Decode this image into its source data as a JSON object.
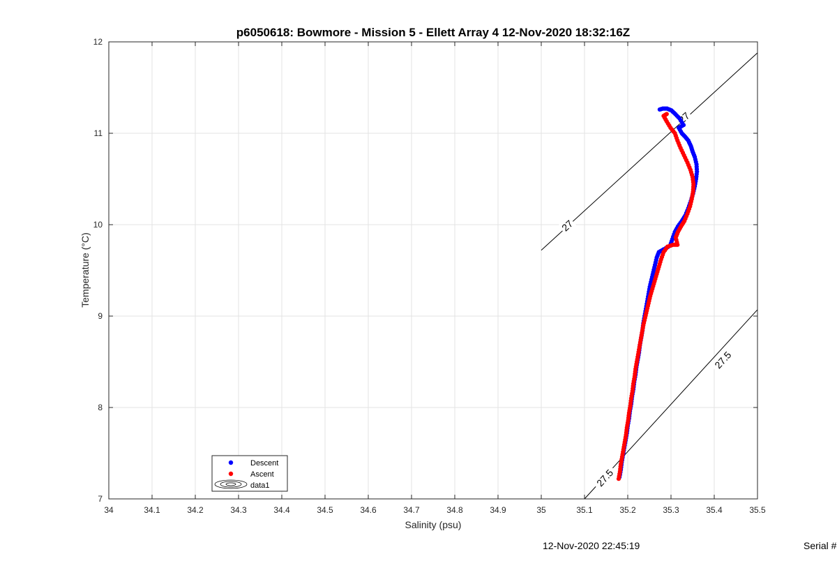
{
  "chart_data": {
    "type": "scatter",
    "title": "p6050618: Bowmore - Mission 5 - Ellett Array 4 12-Nov-2020 18:32:16Z",
    "xlabel": "Salinity (psu)",
    "ylabel": "Temperature (°C)",
    "xlim": [
      34,
      35.5
    ],
    "ylim": [
      7,
      12
    ],
    "xticks": [
      "34",
      "34.1",
      "34.2",
      "34.3",
      "34.4",
      "34.5",
      "34.6",
      "34.7",
      "34.8",
      "34.9",
      "35",
      "35.1",
      "35.2",
      "35.3",
      "35.4",
      "35.5"
    ],
    "yticks": [
      "7",
      "8",
      "9",
      "10",
      "11",
      "12"
    ],
    "grid": true,
    "legend": {
      "placement": "bottom-left",
      "entries": [
        "Descent",
        "Ascent",
        "data1"
      ]
    },
    "colors": {
      "descent": "#0000ff",
      "ascent": "#ff0000",
      "contour": "#000000",
      "grid": "#e3e3e3"
    },
    "contours": [
      {
        "label": "27",
        "points": [
          [
            35.0,
            9.72
          ],
          [
            35.5,
            11.88
          ]
        ],
        "label_positions": [
          [
            35.06,
            9.99
          ],
          [
            35.33,
            11.17
          ]
        ]
      },
      {
        "label": "27.5",
        "points": [
          [
            35.1,
            7.0
          ],
          [
            35.5,
            9.07
          ]
        ],
        "label_positions": [
          [
            35.147,
            7.23
          ],
          [
            35.42,
            8.52
          ]
        ]
      }
    ],
    "series": [
      {
        "name": "Descent",
        "marker": "dot",
        "points": [
          [
            35.181,
            7.24
          ],
          [
            35.184,
            7.32
          ],
          [
            35.186,
            7.4
          ],
          [
            35.189,
            7.48
          ],
          [
            35.192,
            7.56
          ],
          [
            35.195,
            7.64
          ],
          [
            35.198,
            7.72
          ],
          [
            35.2,
            7.8
          ],
          [
            35.203,
            7.88
          ],
          [
            35.205,
            7.96
          ],
          [
            35.208,
            8.04
          ],
          [
            35.21,
            8.12
          ],
          [
            35.213,
            8.2
          ],
          [
            35.215,
            8.28
          ],
          [
            35.218,
            8.36
          ],
          [
            35.22,
            8.44
          ],
          [
            35.223,
            8.52
          ],
          [
            35.226,
            8.6
          ],
          [
            35.228,
            8.68
          ],
          [
            35.231,
            8.76
          ],
          [
            35.234,
            8.84
          ],
          [
            35.236,
            8.92
          ],
          [
            35.239,
            9.0
          ],
          [
            35.242,
            9.08
          ],
          [
            35.245,
            9.16
          ],
          [
            35.248,
            9.24
          ],
          [
            35.251,
            9.32
          ],
          [
            35.255,
            9.4
          ],
          [
            35.259,
            9.48
          ],
          [
            35.263,
            9.56
          ],
          [
            35.267,
            9.64
          ],
          [
            35.272,
            9.7
          ],
          [
            35.283,
            9.73
          ],
          [
            35.298,
            9.77
          ],
          [
            35.303,
            9.84
          ],
          [
            35.309,
            9.92
          ],
          [
            35.316,
            9.98
          ],
          [
            35.325,
            10.04
          ],
          [
            35.333,
            10.1
          ],
          [
            35.34,
            10.18
          ],
          [
            35.346,
            10.26
          ],
          [
            35.351,
            10.34
          ],
          [
            35.355,
            10.42
          ],
          [
            35.358,
            10.5
          ],
          [
            35.36,
            10.58
          ],
          [
            35.359,
            10.66
          ],
          [
            35.355,
            10.74
          ],
          [
            35.35,
            10.8
          ],
          [
            35.346,
            10.86
          ],
          [
            35.34,
            10.92
          ],
          [
            35.333,
            10.96
          ],
          [
            35.325,
            11.0
          ],
          [
            35.318,
            11.06
          ],
          [
            35.329,
            11.09
          ],
          [
            35.32,
            11.16
          ],
          [
            35.31,
            11.21
          ],
          [
            35.301,
            11.25
          ],
          [
            35.291,
            11.27
          ],
          [
            35.281,
            11.27
          ],
          [
            35.274,
            11.26
          ]
        ]
      },
      {
        "name": "Ascent",
        "marker": "dot",
        "points": [
          [
            35.179,
            7.22
          ],
          [
            35.182,
            7.3
          ],
          [
            35.184,
            7.38
          ],
          [
            35.187,
            7.46
          ],
          [
            35.19,
            7.54
          ],
          [
            35.193,
            7.62
          ],
          [
            35.196,
            7.7
          ],
          [
            35.198,
            7.78
          ],
          [
            35.201,
            7.86
          ],
          [
            35.203,
            7.94
          ],
          [
            35.206,
            8.02
          ],
          [
            35.208,
            8.1
          ],
          [
            35.211,
            8.18
          ],
          [
            35.213,
            8.26
          ],
          [
            35.216,
            8.34
          ],
          [
            35.218,
            8.42
          ],
          [
            35.221,
            8.5
          ],
          [
            35.224,
            8.58
          ],
          [
            35.227,
            8.66
          ],
          [
            35.23,
            8.74
          ],
          [
            35.233,
            8.82
          ],
          [
            35.236,
            8.9
          ],
          [
            35.24,
            8.98
          ],
          [
            35.244,
            9.06
          ],
          [
            35.248,
            9.14
          ],
          [
            35.252,
            9.22
          ],
          [
            35.257,
            9.3
          ],
          [
            35.262,
            9.38
          ],
          [
            35.267,
            9.46
          ],
          [
            35.272,
            9.54
          ],
          [
            35.277,
            9.62
          ],
          [
            35.283,
            9.7
          ],
          [
            35.292,
            9.76
          ],
          [
            35.305,
            9.78
          ],
          [
            35.315,
            9.78
          ],
          [
            35.311,
            9.86
          ],
          [
            35.316,
            9.92
          ],
          [
            35.323,
            9.98
          ],
          [
            35.331,
            10.04
          ],
          [
            35.338,
            10.12
          ],
          [
            35.344,
            10.2
          ],
          [
            35.348,
            10.28
          ],
          [
            35.351,
            10.36
          ],
          [
            35.352,
            10.44
          ],
          [
            35.35,
            10.52
          ],
          [
            35.345,
            10.6
          ],
          [
            35.338,
            10.68
          ],
          [
            35.33,
            10.76
          ],
          [
            35.322,
            10.84
          ],
          [
            35.315,
            10.92
          ],
          [
            35.309,
            11.0
          ],
          [
            35.299,
            11.06
          ],
          [
            35.29,
            11.13
          ],
          [
            35.283,
            11.19
          ],
          [
            35.29,
            11.21
          ]
        ]
      }
    ]
  },
  "footer": {
    "timestamp": "12-Nov-2020 22:45:19",
    "serial": "Serial #"
  }
}
